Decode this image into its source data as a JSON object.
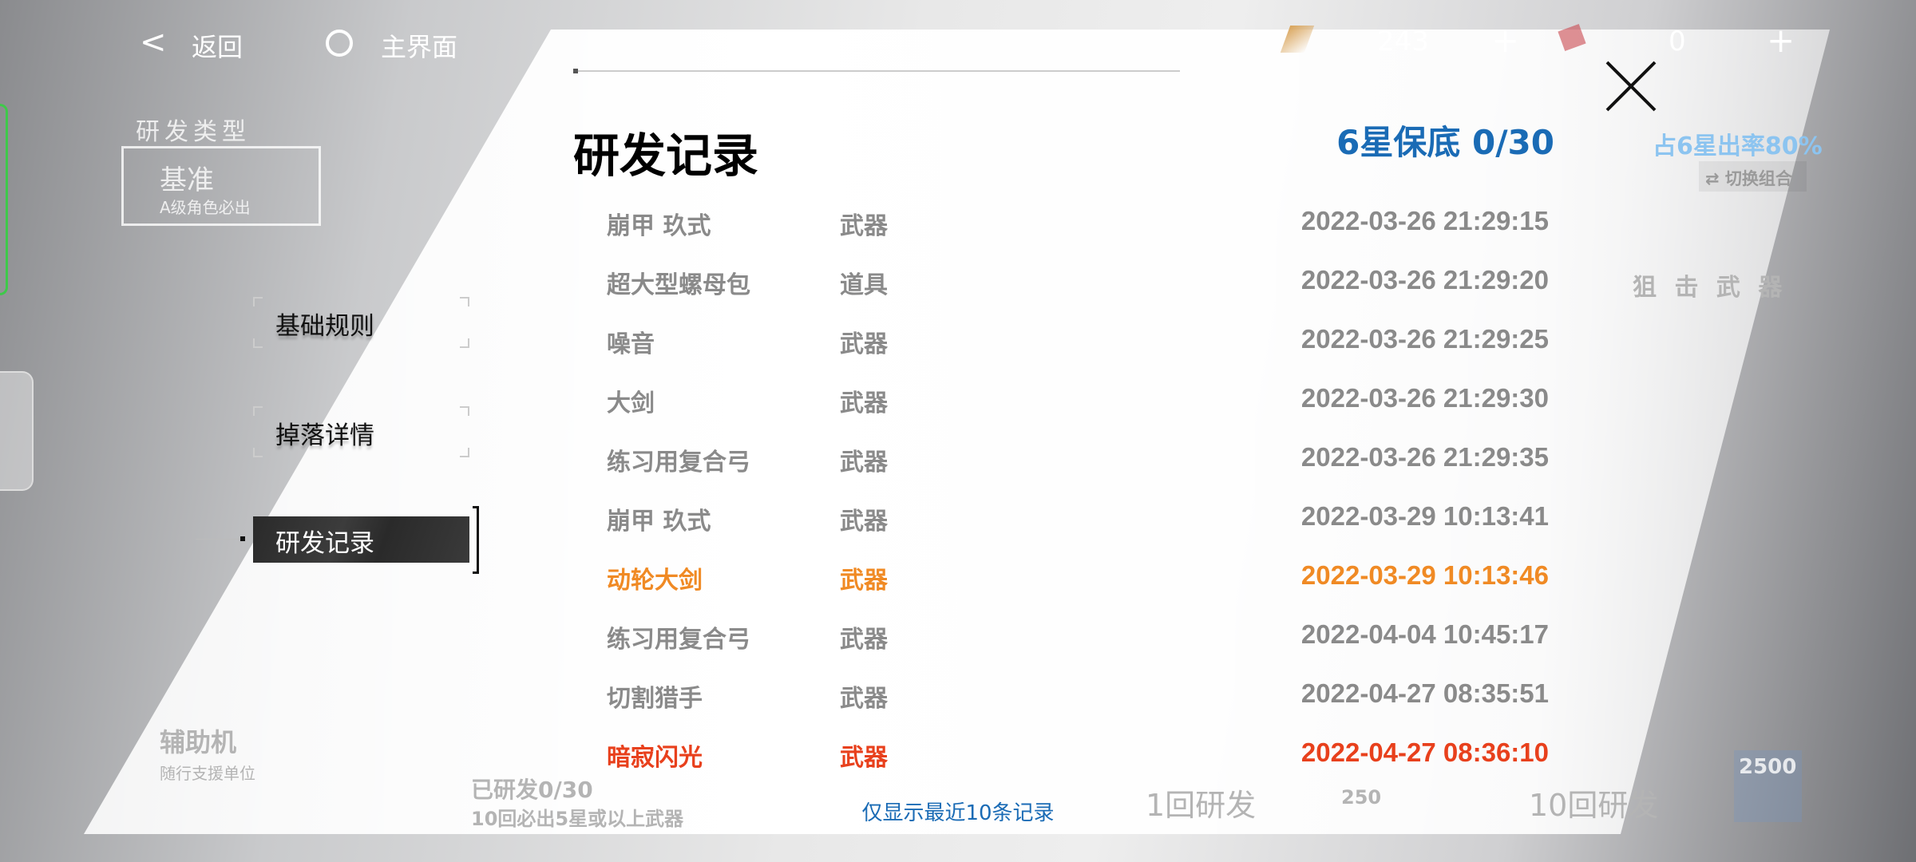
{
  "topbar": {
    "back_label": "返回",
    "home_label": "主界面",
    "currency1": "243",
    "currency2": "0",
    "plus": "+"
  },
  "background": {
    "gacha_type_label": "研发类型",
    "banner_name": "基准",
    "banner_desc": "A级角色必出",
    "aux_label": "辅助机",
    "aux_desc": "随行支援单位",
    "rate_label": "占6星出率80%",
    "switch_label": "切换组合",
    "category_label": "狙 击 武 器",
    "pity_hint": "已研发0/30",
    "guarantee_hint": "10回必出5星或以上武器",
    "pull1_label": "1回研发",
    "pull1_cost": "250",
    "pull10_label": "10回研发",
    "pull10_cost": "2500"
  },
  "menu": {
    "items": [
      {
        "label": "基础规则",
        "active": false
      },
      {
        "label": "掉落详情",
        "active": false
      },
      {
        "label": "研发记录",
        "active": true
      }
    ]
  },
  "dialog": {
    "title": "研发记录",
    "pity": "6星保底 0/30",
    "footer": "仅显示最近10条记录",
    "records": [
      {
        "name": "崩甲 玖式",
        "type": "武器",
        "date": "2022-03-26 21:29:15",
        "rarity": "normal"
      },
      {
        "name": "超大型螺母包",
        "type": "道具",
        "date": "2022-03-26 21:29:20",
        "rarity": "normal"
      },
      {
        "name": "噪音",
        "type": "武器",
        "date": "2022-03-26 21:29:25",
        "rarity": "normal"
      },
      {
        "name": "大剑",
        "type": "武器",
        "date": "2022-03-26 21:29:30",
        "rarity": "normal"
      },
      {
        "name": "练习用复合弓",
        "type": "武器",
        "date": "2022-03-26 21:29:35",
        "rarity": "normal"
      },
      {
        "name": "崩甲 玖式",
        "type": "武器",
        "date": "2022-03-29 10:13:41",
        "rarity": "normal"
      },
      {
        "name": "动轮大剑",
        "type": "武器",
        "date": "2022-03-29 10:13:46",
        "rarity": "5star"
      },
      {
        "name": "练习用复合弓",
        "type": "武器",
        "date": "2022-04-04 10:45:17",
        "rarity": "normal"
      },
      {
        "name": "切割猎手",
        "type": "武器",
        "date": "2022-04-27 08:35:51",
        "rarity": "normal"
      },
      {
        "name": "暗寂闪光",
        "type": "武器",
        "date": "2022-04-27 08:36:10",
        "rarity": "6star"
      }
    ]
  },
  "colors": {
    "normal": "#8a8a8a",
    "5star": "#f08a24",
    "6star": "#e8401c",
    "accent": "#1a6bb5"
  }
}
